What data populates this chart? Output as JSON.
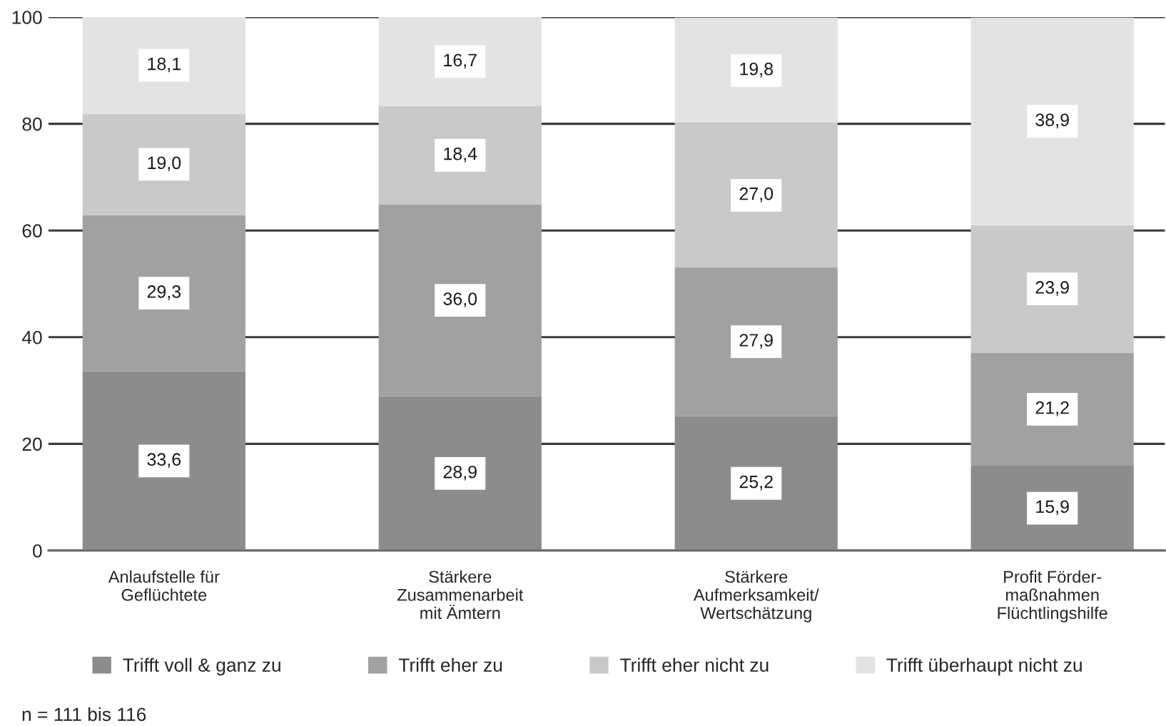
{
  "chart_data": {
    "type": "bar",
    "stacked": true,
    "categories": [
      "Anlaufstelle für\nGeflüchtete",
      "Stärkere\nZusammenarbeit\nmit Ämtern",
      "Stärkere\nAufmerksamkeit/\nWertschätzung",
      "Profit Förder-\nmaßnahmen\nFlüchtlingshilfe"
    ],
    "series": [
      {
        "name": "Trifft voll & ganz zu",
        "color": "#8c8c8c",
        "values": [
          33.6,
          28.9,
          25.2,
          15.9
        ],
        "value_labels": [
          "33,6",
          "28,9",
          "25,2",
          "15,9"
        ]
      },
      {
        "name": "Trifft eher zu",
        "color": "#a1a1a1",
        "values": [
          29.3,
          36.0,
          27.9,
          21.2
        ],
        "value_labels": [
          "29,3",
          "36,0",
          "27,9",
          "21,2"
        ]
      },
      {
        "name": "Trifft eher nicht zu",
        "color": "#c8c9c8",
        "values": [
          19.0,
          18.4,
          27.0,
          23.9
        ],
        "value_labels": [
          "19,0",
          "18,4",
          "27,0",
          "23,9"
        ]
      },
      {
        "name": "Trifft überhaupt nicht zu",
        "color": "#e3e3e3",
        "values": [
          18.1,
          16.7,
          19.8,
          38.9
        ],
        "value_labels": [
          "18,1",
          "16,7",
          "19,8",
          "38,9"
        ]
      }
    ],
    "ylim": [
      0,
      100
    ],
    "yticks": [
      0,
      20,
      40,
      60,
      80,
      100
    ],
    "grid": "y",
    "legend": "bottom",
    "annotations": [
      "n = 111 bis 116"
    ]
  }
}
